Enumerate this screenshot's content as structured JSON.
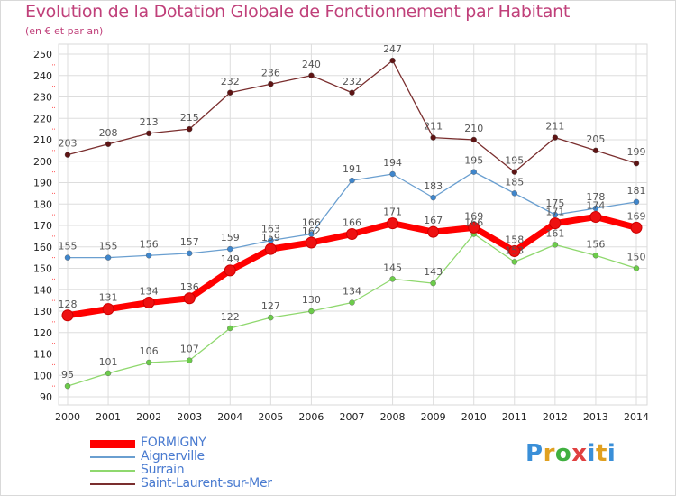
{
  "header": {
    "title": "Evolution de la Dotation Globale de Fonctionnement par Habitant",
    "subtitle": "(en € et par an)"
  },
  "logo": {
    "text": "Proxiti"
  },
  "colors": {
    "background": "#ffffff",
    "plot_border": "#d9d9d9",
    "grid": "#dddddd",
    "title": "#c0407a",
    "value_label": "#555555",
    "legend_text": "#4a7bd0"
  },
  "chart_data": {
    "type": "line",
    "x": [
      "2000",
      "2001",
      "2002",
      "2003",
      "2004",
      "2005",
      "2006",
      "2007",
      "2008",
      "2009",
      "2010",
      "2011",
      "2012",
      "2013",
      "2014"
    ],
    "yticks": [
      90,
      100,
      110,
      120,
      130,
      140,
      150,
      160,
      170,
      180,
      190,
      200,
      210,
      220,
      230,
      240,
      250
    ],
    "ylim": [
      90,
      250
    ],
    "grid": true,
    "legend_position": "bottom-left",
    "series": [
      {
        "name": "FORMIGNY",
        "color": "#ff0000",
        "marker": "#ee1111",
        "emphasis": true,
        "values": [
          128,
          131,
          134,
          136,
          149,
          159,
          162,
          166,
          171,
          167,
          169,
          158,
          171,
          174,
          169
        ]
      },
      {
        "name": "Aignerville",
        "color": "#6a9fd0",
        "marker": "#3f86cc",
        "emphasis": false,
        "values": [
          155,
          155,
          156,
          157,
          159,
          163,
          166,
          191,
          194,
          183,
          195,
          185,
          175,
          178,
          181
        ]
      },
      {
        "name": "Surrain",
        "color": "#8fd86e",
        "marker": "#6ccc4a",
        "emphasis": false,
        "values": [
          95,
          101,
          106,
          107,
          122,
          127,
          130,
          134,
          145,
          143,
          166,
          153,
          161,
          156,
          150
        ]
      },
      {
        "name": "Saint-Laurent-sur-Mer",
        "color": "#7a2e2e",
        "marker": "#5e1414",
        "emphasis": false,
        "values": [
          203,
          208,
          213,
          215,
          232,
          236,
          240,
          232,
          247,
          211,
          210,
          195,
          211,
          205,
          199
        ]
      }
    ]
  }
}
